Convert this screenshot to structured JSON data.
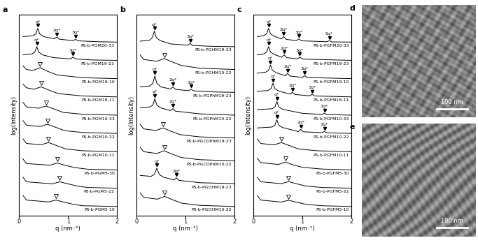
{
  "chart_data": [
    {
      "type": "line",
      "panel": "a",
      "xlabel": "q (nm⁻¹)",
      "ylabel": "log(Intensity)",
      "xlim": [
        0,
        2
      ],
      "xticks": [
        0,
        1,
        2
      ],
      "ylim": [
        0,
        11
      ],
      "tick_labels": "x",
      "color": "#000000",
      "series": [
        {
          "name": "PS-b-PGM5-10",
          "x": [
            0.08,
            0.15,
            0.6,
            0.75,
            0.9,
            1.1,
            1.3,
            2.0
          ],
          "values": [
            1.1,
            0.85,
            0.75,
            0.85,
            0.75,
            0.62,
            0.54,
            0.5
          ],
          "open_peaks": [
            0.75
          ]
        },
        {
          "name": "PS-b-PGM5-22",
          "x": [
            0.08,
            0.15,
            0.68,
            0.83,
            0.98,
            1.18,
            1.4,
            2.0
          ],
          "values": [
            2.1,
            1.85,
            1.74,
            1.85,
            1.75,
            1.62,
            1.54,
            1.5
          ],
          "open_peaks": [
            0.83
          ]
        },
        {
          "name": "PS-b-PGM5-30",
          "x": [
            0.08,
            0.15,
            0.63,
            0.78,
            0.93,
            1.13,
            1.4,
            2.0
          ],
          "values": [
            3.1,
            2.85,
            2.76,
            2.88,
            2.76,
            2.63,
            2.54,
            2.5
          ],
          "open_peaks": [
            0.78
          ]
        },
        {
          "name": "PS-b-PGM10-11",
          "x": [
            0.08,
            0.15,
            0.45,
            0.6,
            0.75,
            0.95,
            1.3,
            2.0
          ],
          "values": [
            4.2,
            3.95,
            3.88,
            4.0,
            3.85,
            3.65,
            3.55,
            3.5
          ],
          "open_peaks": [
            0.6
          ]
        },
        {
          "name": "PS-b-PGM10-22",
          "x": [
            0.08,
            0.15,
            0.43,
            0.58,
            0.73,
            0.93,
            1.3,
            2.0
          ],
          "values": [
            5.2,
            4.95,
            4.88,
            5.0,
            4.85,
            4.65,
            4.55,
            4.5
          ],
          "open_peaks": [
            0.58
          ]
        },
        {
          "name": "PS-b-PGM10-33",
          "x": [
            0.08,
            0.15,
            0.4,
            0.55,
            0.7,
            0.9,
            1.3,
            2.0
          ],
          "values": [
            6.2,
            5.95,
            5.88,
            6.0,
            5.85,
            5.65,
            5.55,
            5.5
          ],
          "open_peaks": [
            0.55
          ]
        },
        {
          "name": "PS-b-PGM18-11",
          "x": [
            0.08,
            0.15,
            0.3,
            0.45,
            0.6,
            0.8,
            1.3,
            2.0
          ],
          "values": [
            7.2,
            7.0,
            6.92,
            7.05,
            6.88,
            6.68,
            6.55,
            6.5
          ],
          "open_peaks": [
            0.45
          ]
        },
        {
          "name": "PS-b-PGM19-10",
          "x": [
            0.08,
            0.15,
            0.28,
            0.43,
            0.58,
            0.78,
            1.3,
            2.0
          ],
          "values": [
            8.2,
            8.0,
            7.95,
            8.1,
            7.9,
            7.7,
            7.55,
            7.5
          ],
          "open_peaks": [
            0.43
          ]
        },
        {
          "name": "PS-b-PGM19-23",
          "x": [
            0.08,
            0.26,
            0.32,
            0.36,
            0.4,
            0.48,
            0.7,
            1.05,
            1.1,
            1.15,
            1.5,
            2.0
          ],
          "values": [
            8.8,
            8.85,
            8.95,
            9.25,
            8.95,
            8.8,
            8.65,
            8.58,
            8.68,
            8.58,
            8.52,
            8.5
          ],
          "peaks": [
            {
              "q": 0.36,
              "label": "q*"
            },
            {
              "q": 1.1,
              "label": "3q*"
            }
          ]
        },
        {
          "name": "PS-b-PGM20-33",
          "x": [
            0.08,
            0.28,
            0.34,
            0.38,
            0.42,
            0.5,
            0.72,
            0.77,
            0.82,
            1.1,
            1.15,
            1.2,
            1.6,
            2.0
          ],
          "values": [
            9.8,
            9.85,
            9.95,
            10.25,
            9.95,
            9.8,
            9.68,
            9.78,
            9.66,
            9.58,
            9.65,
            9.57,
            9.52,
            9.5
          ],
          "peaks": [
            {
              "q": 0.38,
              "label": "q*"
            },
            {
              "q": 0.77,
              "label": "2q*"
            },
            {
              "q": 1.15,
              "label": "3q*"
            }
          ]
        }
      ]
    },
    {
      "type": "line",
      "panel": "b",
      "xlabel": "q (nm⁻¹)",
      "ylabel": "log(Intensity)",
      "xlim": [
        0,
        2
      ],
      "xticks": [
        0,
        1,
        2
      ],
      "ylim": [
        0,
        11
      ],
      "tick_labels": "x",
      "color": "#000000",
      "series": [
        {
          "name": "PS-b-PGOHM10-22",
          "x": [
            0.08,
            0.15,
            0.43,
            0.58,
            0.73,
            0.93,
            1.3,
            2.0
          ],
          "values": [
            1.25,
            1.0,
            0.9,
            1.05,
            0.88,
            0.68,
            0.56,
            0.5
          ],
          "open_peaks": [
            0.58
          ]
        },
        {
          "name": "PS-b-PGOHM19-23",
          "x": [
            0.08,
            0.3,
            0.37,
            0.42,
            0.47,
            0.56,
            0.77,
            0.82,
            0.87,
            1.3,
            2.0
          ],
          "values": [
            2.2,
            2.15,
            2.25,
            2.6,
            2.25,
            2.1,
            1.95,
            2.07,
            1.93,
            1.8,
            1.75
          ],
          "peaks": [
            {
              "q": 0.42,
              "label": "q*"
            },
            {
              "q": 0.82,
              "label": "2q*"
            }
          ]
        },
        {
          "name": "PS-b-PGCDPhM10-22",
          "x": [
            0.08,
            0.15,
            0.42,
            0.57,
            0.72,
            0.92,
            1.3,
            2.0
          ],
          "values": [
            3.75,
            3.5,
            3.4,
            3.55,
            3.38,
            3.18,
            3.06,
            3.0
          ],
          "open_peaks": [
            0.57
          ]
        },
        {
          "name": "PS-b-PGCDPhM19-23",
          "x": [
            0.08,
            0.15,
            0.4,
            0.55,
            0.7,
            0.9,
            1.3,
            2.0
          ],
          "values": [
            5.0,
            4.75,
            4.66,
            4.8,
            4.63,
            4.43,
            4.31,
            4.25
          ],
          "open_peaks": [
            0.55
          ]
        },
        {
          "name": "PS-b-PGPhM10-22",
          "x": [
            0.08,
            0.28,
            0.34,
            0.38,
            0.42,
            0.5,
            0.7,
            0.75,
            0.8,
            1.3,
            2.0
          ],
          "values": [
            5.9,
            5.95,
            6.05,
            6.4,
            6.05,
            5.9,
            5.75,
            5.86,
            5.72,
            5.57,
            5.5
          ],
          "peaks": [
            {
              "q": 0.38,
              "label": "q*"
            },
            {
              "q": 0.75,
              "label": "2q*"
            }
          ]
        },
        {
          "name": "PS-b-PGPhM19-23",
          "x": [
            0.08,
            0.28,
            0.34,
            0.38,
            0.42,
            0.5,
            0.7,
            0.75,
            0.8,
            1.07,
            1.12,
            1.17,
            1.6,
            2.0
          ],
          "values": [
            7.05,
            7.1,
            7.25,
            7.65,
            7.25,
            7.05,
            6.93,
            7.05,
            6.91,
            6.84,
            6.92,
            6.83,
            6.77,
            6.75
          ],
          "peaks": [
            {
              "q": 0.38,
              "label": "q*"
            },
            {
              "q": 0.75,
              "label": "2q*"
            },
            {
              "q": 1.12,
              "label": "3q*"
            }
          ]
        },
        {
          "name": "PS-b-PGHM10-22",
          "x": [
            0.08,
            0.15,
            0.42,
            0.57,
            0.72,
            0.92,
            1.3,
            2.0
          ],
          "values": [
            8.8,
            8.55,
            8.45,
            8.6,
            8.43,
            8.22,
            8.07,
            8.0
          ],
          "open_peaks": [
            0.57
          ]
        },
        {
          "name": "PS-b-PGHM19-23",
          "x": [
            0.08,
            0.27,
            0.33,
            0.37,
            0.41,
            0.49,
            0.7,
            1.05,
            1.1,
            1.15,
            1.5,
            2.0
          ],
          "values": [
            9.55,
            9.6,
            9.75,
            10.1,
            9.75,
            9.58,
            9.4,
            9.33,
            9.42,
            9.32,
            9.27,
            9.25
          ],
          "peaks": [
            {
              "q": 0.37,
              "label": "q*"
            },
            {
              "q": 1.1,
              "label": "3q*"
            }
          ]
        }
      ]
    },
    {
      "type": "line",
      "panel": "c",
      "xlabel": "q (nm⁻¹)",
      "ylabel": "log(Intensity)",
      "xlim": [
        0,
        2
      ],
      "xticks": [
        0,
        1,
        2
      ],
      "ylim": [
        0,
        11
      ],
      "tick_labels": "x",
      "color": "#000000",
      "series": [
        {
          "name": "PS-b-PGFM5-10",
          "x": [
            0.08,
            0.15,
            0.57,
            0.72,
            0.87,
            1.07,
            1.4,
            2.0
          ],
          "values": [
            1.1,
            0.85,
            0.74,
            0.84,
            0.74,
            0.62,
            0.54,
            0.5
          ],
          "open_peaks": [
            0.72
          ]
        },
        {
          "name": "PS-b-PGFM5-22",
          "x": [
            0.08,
            0.15,
            0.57,
            0.72,
            0.87,
            1.07,
            1.4,
            2.0
          ],
          "values": [
            2.1,
            1.85,
            1.75,
            1.86,
            1.75,
            1.62,
            1.54,
            1.5
          ],
          "open_peaks": [
            0.72
          ]
        },
        {
          "name": "PS-b-PGFM5-30",
          "x": [
            0.08,
            0.15,
            0.51,
            0.66,
            0.81,
            1.01,
            1.4,
            2.0
          ],
          "values": [
            3.15,
            2.9,
            2.8,
            2.93,
            2.78,
            2.64,
            2.55,
            2.5
          ],
          "open_peaks": [
            0.66
          ]
        },
        {
          "name": "PS-b-PGFM10-11",
          "x": [
            0.08,
            0.15,
            0.42,
            0.57,
            0.72,
            0.92,
            1.3,
            2.0
          ],
          "values": [
            4.2,
            3.95,
            3.87,
            4.0,
            3.85,
            3.65,
            3.55,
            3.5
          ],
          "open_peaks": [
            0.57
          ]
        },
        {
          "name": "PS-b-PGFM10-22",
          "x": [
            0.08,
            0.38,
            0.44,
            0.48,
            0.52,
            0.6,
            0.92,
            0.97,
            1.02,
            1.4,
            1.45,
            1.5,
            2.0
          ],
          "values": [
            4.8,
            4.85,
            4.95,
            5.25,
            4.95,
            4.82,
            4.6,
            4.72,
            4.59,
            4.54,
            4.61,
            4.53,
            4.5
          ],
          "peaks": [
            {
              "q": 0.48,
              "label": "q*"
            },
            {
              "q": 0.97,
              "label": "2q*"
            },
            {
              "q": 1.45,
              "label": "3q*"
            }
          ]
        },
        {
          "name": "PS-b-PGFM10-33",
          "x": [
            0.08,
            0.38,
            0.44,
            0.48,
            0.52,
            0.6,
            1.0,
            1.4,
            1.45,
            1.5,
            2.0
          ],
          "values": [
            5.8,
            5.85,
            5.95,
            6.25,
            5.95,
            5.82,
            5.6,
            5.54,
            5.61,
            5.53,
            5.5
          ],
          "peaks": [
            {
              "q": 0.48,
              "label": "q*"
            },
            {
              "q": 1.45,
              "label": "3q*"
            }
          ]
        },
        {
          "name": "PS-b-PGFM18-11",
          "x": [
            0.08,
            0.3,
            0.36,
            0.4,
            0.44,
            0.52,
            0.75,
            0.8,
            0.85,
            1.15,
            1.2,
            1.25,
            2.0
          ],
          "values": [
            6.8,
            6.85,
            6.95,
            7.25,
            6.95,
            6.82,
            6.65,
            6.76,
            6.63,
            6.56,
            6.64,
            6.55,
            6.5
          ],
          "peaks": [
            {
              "q": 0.4,
              "label": "q*"
            },
            {
              "q": 0.8,
              "label": "2q*"
            },
            {
              "q": 1.2,
              "label": "3q*"
            }
          ]
        },
        {
          "name": "PS-b-PGFM19-10",
          "x": [
            0.08,
            0.25,
            0.31,
            0.35,
            0.39,
            0.47,
            0.65,
            0.7,
            0.75,
            1.0,
            1.05,
            1.1,
            2.0
          ],
          "values": [
            7.8,
            7.85,
            7.95,
            8.25,
            7.95,
            7.82,
            7.66,
            7.78,
            7.64,
            7.57,
            7.66,
            7.56,
            7.5
          ],
          "peaks": [
            {
              "q": 0.35,
              "label": "q*"
            },
            {
              "q": 0.7,
              "label": "2q*"
            },
            {
              "q": 1.05,
              "label": "3q*"
            }
          ]
        },
        {
          "name": "PS-b-PGFM19-23",
          "x": [
            0.08,
            0.21,
            0.27,
            0.31,
            0.35,
            0.43,
            0.58,
            0.63,
            0.68,
            0.9,
            0.95,
            1.0,
            2.0
          ],
          "values": [
            8.8,
            8.85,
            8.95,
            9.25,
            8.95,
            8.82,
            8.67,
            8.8,
            8.65,
            8.58,
            8.68,
            8.57,
            8.5
          ],
          "peaks": [
            {
              "q": 0.31,
              "label": "q*"
            },
            {
              "q": 0.63,
              "label": "2q*"
            },
            {
              "q": 0.95,
              "label": "3q*"
            }
          ]
        },
        {
          "name": "PS-b-PGFM20-33",
          "x": [
            0.08,
            0.21,
            0.27,
            0.31,
            0.35,
            0.43,
            0.57,
            0.62,
            0.67,
            0.88,
            0.93,
            0.98,
            1.5,
            1.55,
            1.6,
            2.0
          ],
          "values": [
            9.8,
            9.85,
            9.95,
            10.25,
            9.95,
            9.82,
            9.67,
            9.8,
            9.65,
            9.58,
            9.68,
            9.57,
            9.52,
            9.58,
            9.51,
            9.5
          ],
          "peaks": [
            {
              "q": 0.31,
              "label": "q*"
            },
            {
              "q": 0.62,
              "label": "2q*"
            },
            {
              "q": 0.93,
              "label": "3q*"
            },
            {
              "q": 1.55,
              "label": "5q*"
            }
          ]
        }
      ]
    }
  ],
  "images": [
    {
      "panel": "d",
      "scale_bar": "100 nm"
    },
    {
      "panel": "e",
      "scale_bar": "100 nm"
    }
  ]
}
